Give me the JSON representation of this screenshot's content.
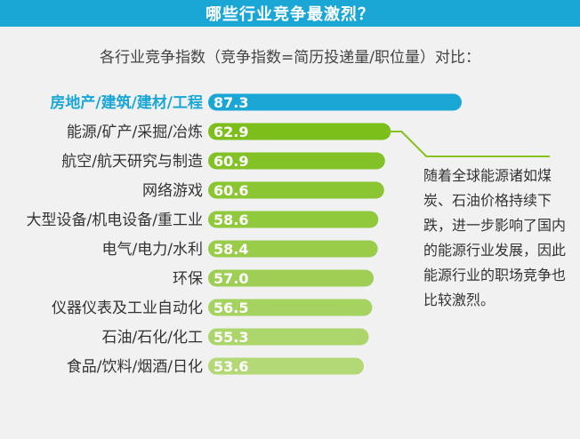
{
  "header": {
    "title": "哪些行业竞争最激烈？"
  },
  "chart_data": {
    "type": "bar",
    "orientation": "horizontal",
    "title": "各行业竞争指数（竞争指数=简历投递量/职位量）对比：",
    "categories": [
      "房地产/建筑/建材/工程",
      "能源/矿产/采掘/冶炼",
      "航空/航天研究与制造",
      "网络游戏",
      "大型设备/机电设备/重工业",
      "电气/电力/水利",
      "环保",
      "仪器仪表及工业自动化",
      "石油/石化/化工",
      "食品/饮料/烟酒/日化"
    ],
    "values": [
      87.3,
      62.9,
      60.9,
      60.6,
      58.6,
      58.4,
      57.0,
      56.5,
      55.3,
      53.6
    ],
    "value_labels": [
      "87.3",
      "62.9",
      "60.9",
      "60.6",
      "58.6",
      "58.4",
      "57.0",
      "56.5",
      "55.3",
      "53.6"
    ],
    "highlight_index": 0,
    "colors": {
      "highlight": "#1aa7d6",
      "gradient_start": "#7cbf1a",
      "gradient_end": "#b3d977",
      "connector": "#86c11d"
    },
    "annotation": {
      "attached_to": "能源/矿产/采掘/冶炼",
      "text": "随着全球能源诸如煤炭、石油价格持续下跌，进一步影响了国内的能源行业发展，因此能源行业的职场竞争也比较激烈。"
    }
  }
}
